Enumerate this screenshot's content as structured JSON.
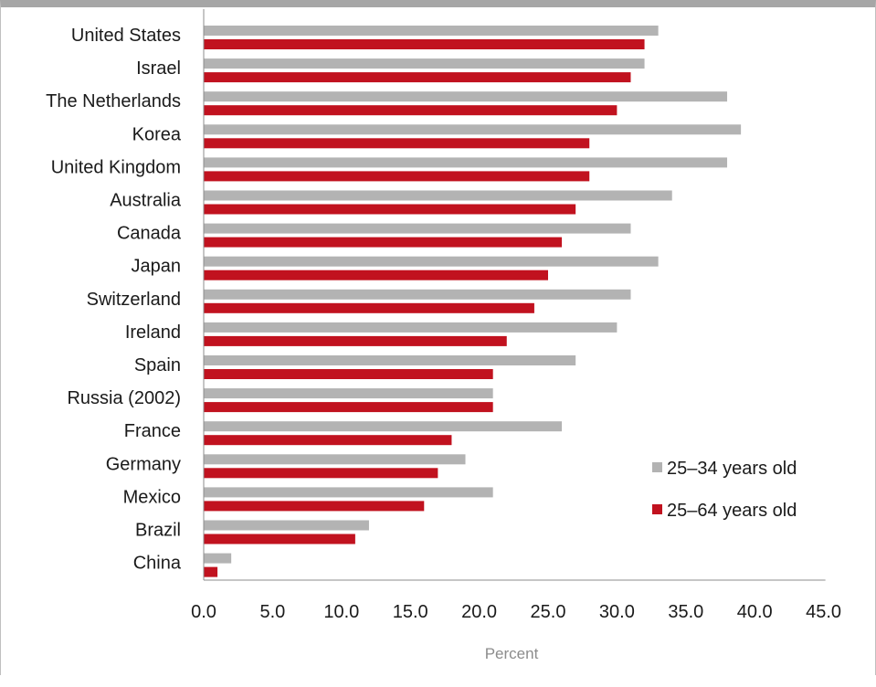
{
  "chart_data": {
    "type": "bar",
    "orientation": "horizontal",
    "categories": [
      "United States",
      "Israel",
      "The Netherlands",
      "Korea",
      "United Kingdom",
      "Australia",
      "Canada",
      "Japan",
      "Switzerland",
      "Ireland",
      "Spain",
      "Russia (2002)",
      "France",
      "Germany",
      "Mexico",
      "Brazil",
      "China"
    ],
    "series": [
      {
        "name": "25–34 years old",
        "color": "#b3b3b3",
        "values": [
          33,
          32,
          38,
          39,
          38,
          34,
          31,
          33,
          31,
          30,
          27,
          21,
          26,
          19,
          21,
          12,
          2
        ]
      },
      {
        "name": "25–64 years old",
        "color": "#c1121f",
        "values": [
          32,
          31,
          30,
          28,
          28,
          27,
          26,
          25,
          24,
          22,
          21,
          21,
          18,
          17,
          16,
          11,
          1
        ]
      }
    ],
    "xlabel": "Percent",
    "xlim": [
      0,
      45
    ],
    "xticks": [
      "0.0",
      "5.0",
      "10.0",
      "15.0",
      "20.0",
      "25.0",
      "30.0",
      "35.0",
      "40.0",
      "45.0"
    ],
    "grid": false,
    "legend_position": "right"
  }
}
